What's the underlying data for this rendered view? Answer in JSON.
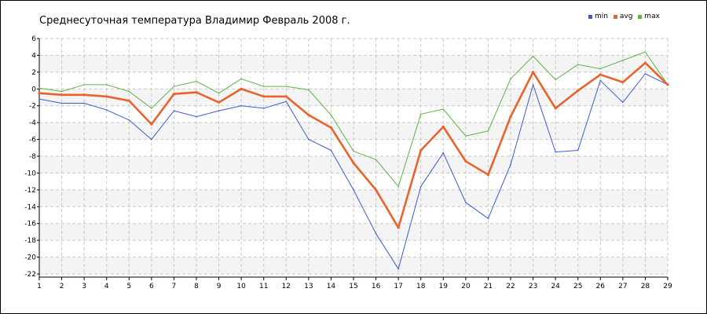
{
  "colors": {
    "min": "#3b5bd6",
    "avg": "#e8642c",
    "max": "#5cb444",
    "grid": "#c8c8c8",
    "band": "#f4f4f4"
  },
  "chart_data": {
    "type": "line",
    "title": "Среднесуточная температура Владимир  Февраль 2008 г.",
    "xlabel": "",
    "ylabel": "",
    "x": [
      1,
      2,
      3,
      4,
      5,
      6,
      7,
      8,
      9,
      10,
      11,
      12,
      13,
      14,
      15,
      16,
      17,
      18,
      19,
      20,
      21,
      22,
      23,
      24,
      25,
      26,
      27,
      28,
      29
    ],
    "ylim": [
      -22,
      6
    ],
    "yticks": [
      6,
      4,
      2,
      0,
      -2,
      -4,
      -6,
      -8,
      -10,
      -12,
      -14,
      -16,
      -18,
      -20,
      -22
    ],
    "grid": true,
    "legend_position": "top-right",
    "series": [
      {
        "name": "min",
        "values": [
          -1.2,
          -1.7,
          -1.7,
          -2.5,
          -3.7,
          -6.0,
          -2.6,
          -3.3,
          -2.6,
          -2.0,
          -2.3,
          -1.5,
          -6.0,
          -7.3,
          -12.0,
          -17.2,
          -21.4,
          -11.6,
          -7.6,
          -13.5,
          -15.4,
          -9.0,
          0.5,
          -7.5,
          -7.3,
          1.0,
          -1.6,
          1.8,
          0.5
        ]
      },
      {
        "name": "avg",
        "values": [
          -0.5,
          -0.7,
          -0.7,
          -0.9,
          -1.4,
          -4.2,
          -0.6,
          -0.4,
          -1.6,
          0.0,
          -0.9,
          -0.9,
          -3.1,
          -4.6,
          -8.8,
          -12.0,
          -16.5,
          -7.3,
          -4.5,
          -8.6,
          -10.2,
          -3.3,
          2.0,
          -2.3,
          -0.2,
          1.7,
          0.8,
          3.1,
          0.5
        ]
      },
      {
        "name": "max",
        "values": [
          0.1,
          -0.3,
          0.5,
          0.5,
          -0.3,
          -2.3,
          0.3,
          0.9,
          -0.5,
          1.2,
          0.3,
          0.3,
          -0.1,
          -3.1,
          -7.4,
          -8.4,
          -11.6,
          -3.0,
          -2.4,
          -5.6,
          -5.0,
          1.2,
          3.9,
          1.1,
          2.9,
          2.4,
          3.4,
          4.4,
          0.5
        ]
      }
    ]
  }
}
